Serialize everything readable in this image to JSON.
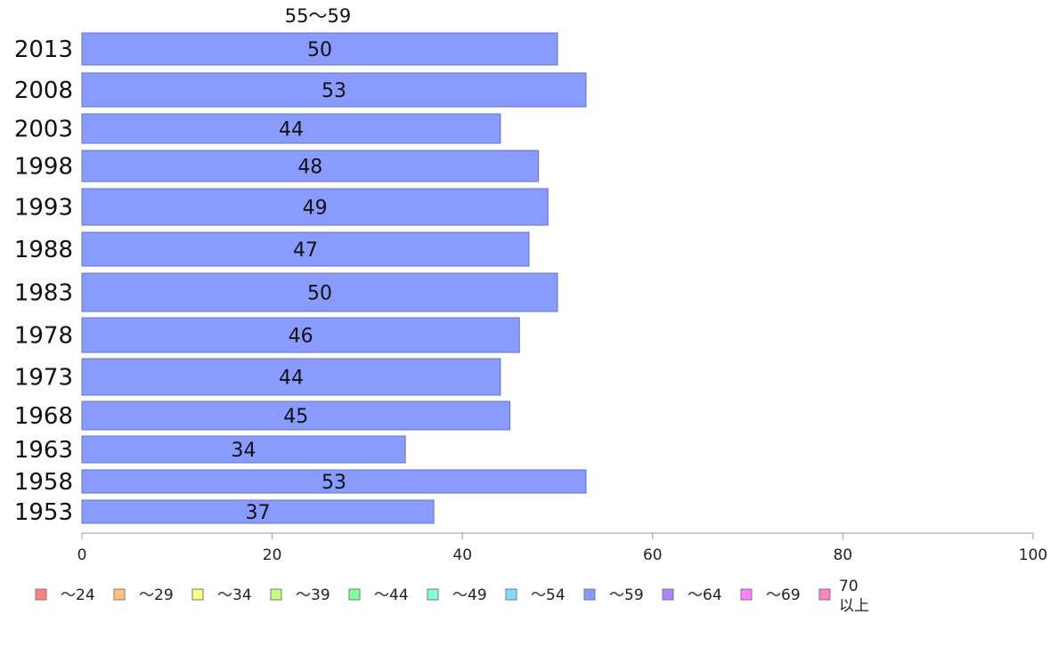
{
  "chart_data": {
    "type": "bar",
    "orientation": "horizontal",
    "series_label": "55〜59",
    "categories": [
      "2013",
      "2008",
      "2003",
      "1998",
      "1993",
      "1988",
      "1983",
      "1978",
      "1973",
      "1968",
      "1963",
      "1958",
      "1953"
    ],
    "values": [
      50,
      53,
      44,
      48,
      49,
      47,
      50,
      46,
      44,
      45,
      34,
      53,
      37
    ],
    "xlim": [
      0,
      100
    ],
    "xticks": [
      0,
      20,
      40,
      60,
      80,
      100
    ],
    "grid": false,
    "bar_color": "#8a9bff",
    "legend_position": "bottom",
    "legend": [
      {
        "label": "〜24",
        "color": "#ff8080"
      },
      {
        "label": "〜29",
        "color": "#ffc080"
      },
      {
        "label": "〜34",
        "color": "#ffff80"
      },
      {
        "label": "〜39",
        "color": "#c0ff80"
      },
      {
        "label": "〜44",
        "color": "#80ff9a"
      },
      {
        "label": "〜49",
        "color": "#80ffdd"
      },
      {
        "label": "〜54",
        "color": "#80ddff"
      },
      {
        "label": "〜59",
        "color": "#8a9bff"
      },
      {
        "label": "〜64",
        "color": "#b080ff"
      },
      {
        "label": "〜69",
        "color": "#ff80ff"
      },
      {
        "label": "70",
        "label_line2": "以上",
        "color": "#ff80c8"
      }
    ]
  }
}
